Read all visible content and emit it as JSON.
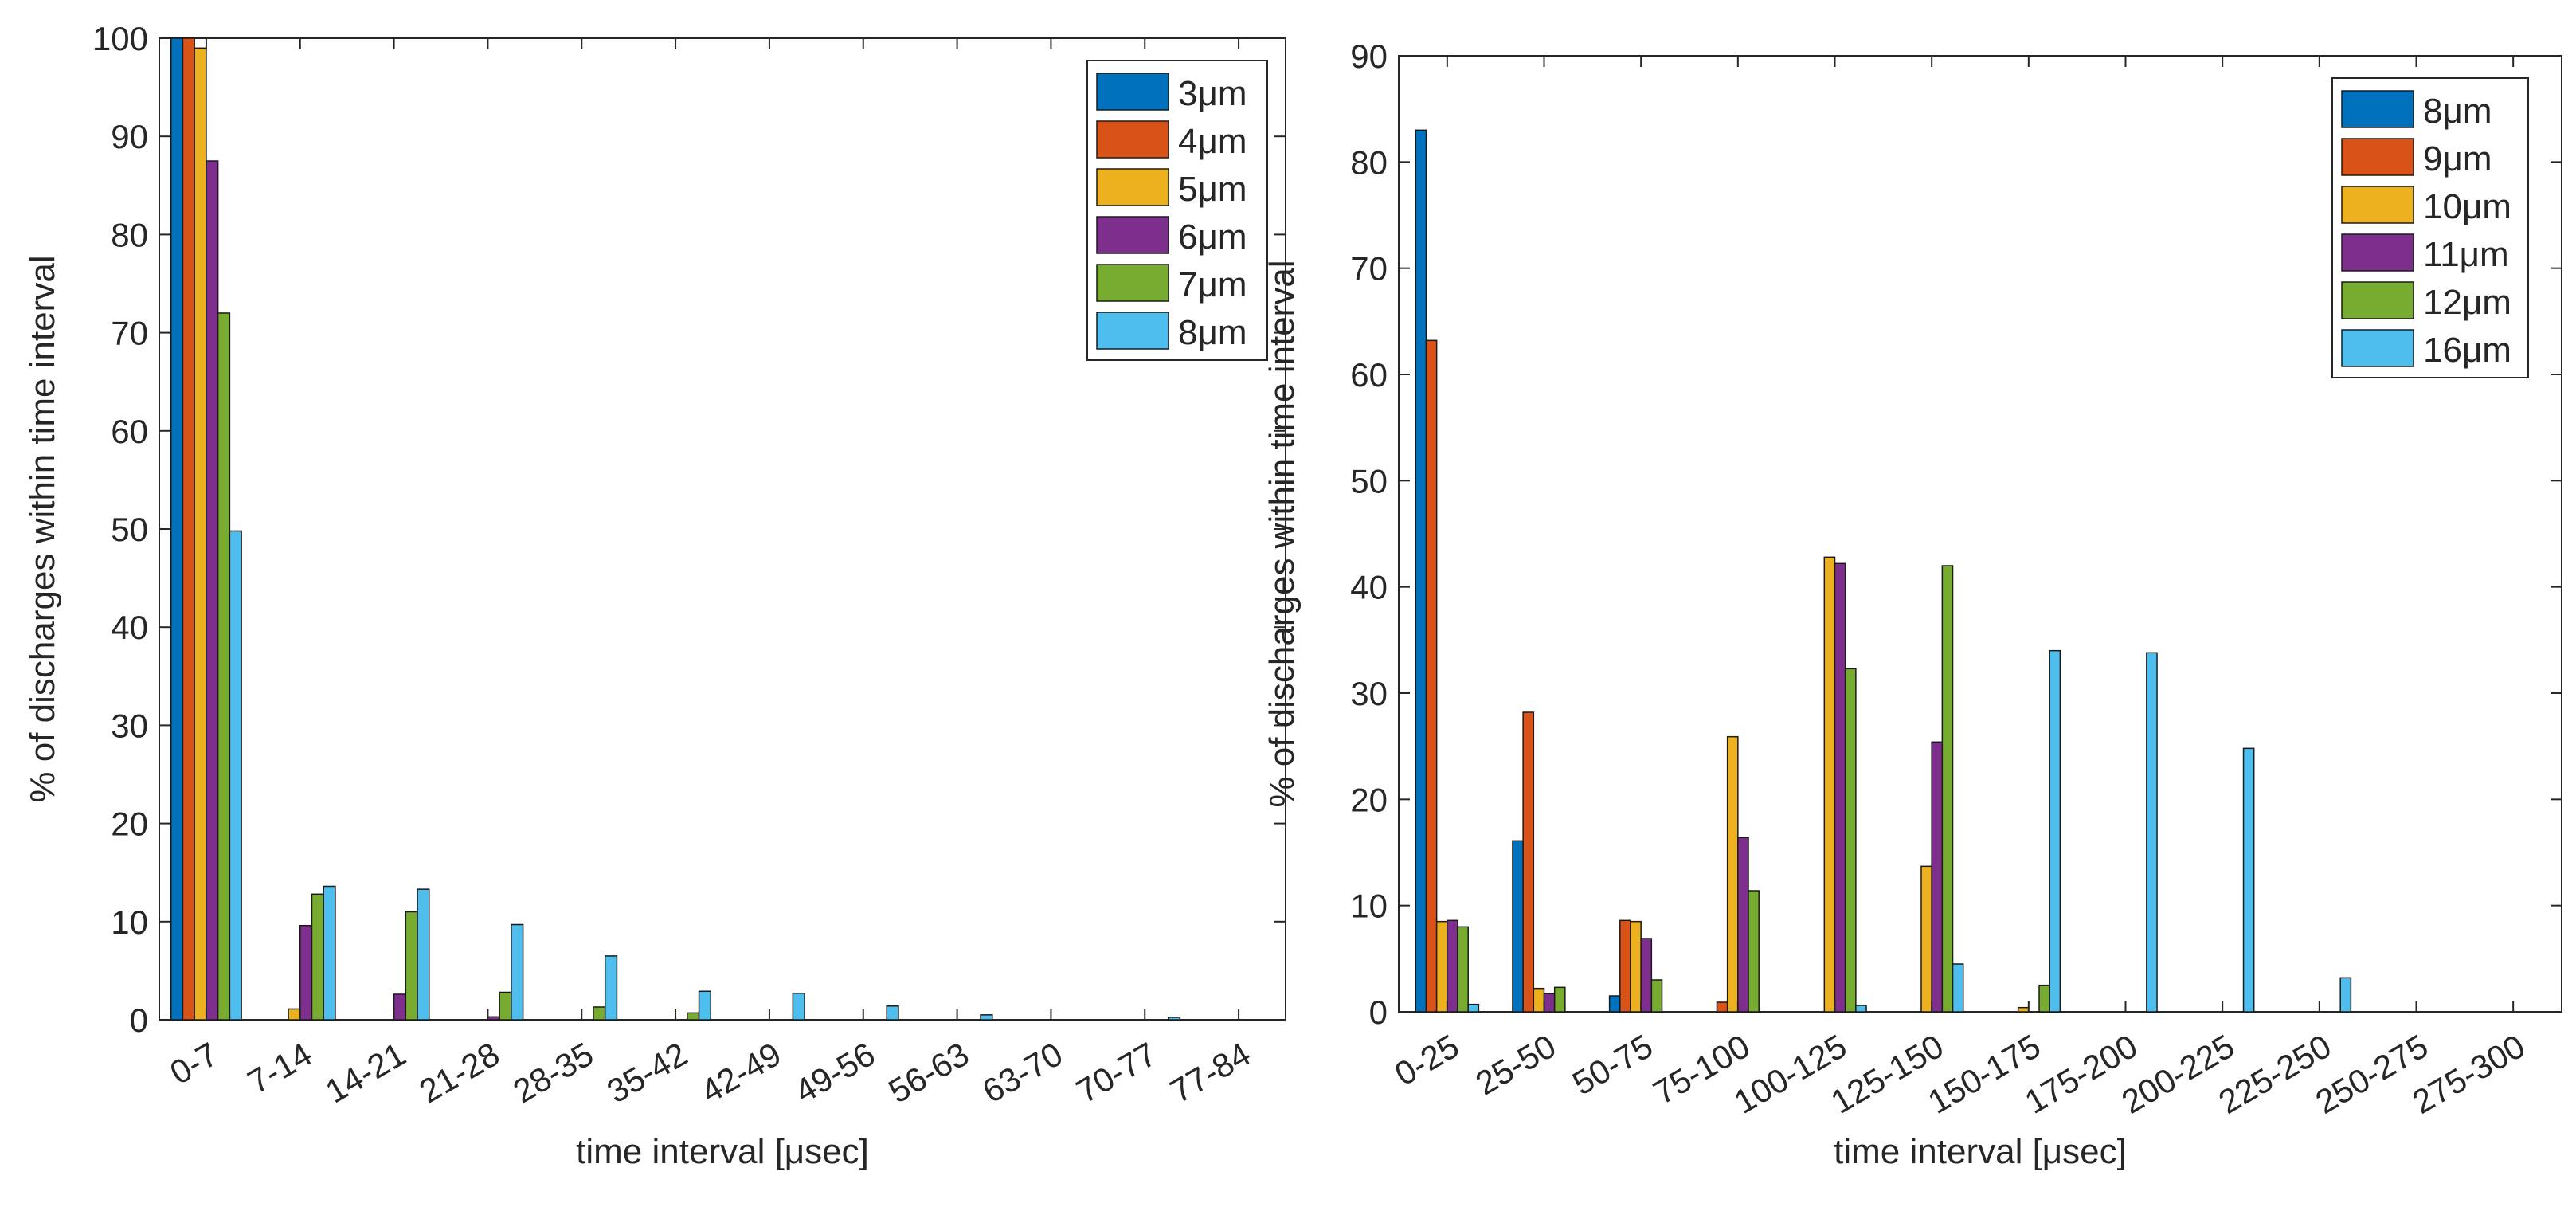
{
  "colors": [
    "#0072BD",
    "#D95319",
    "#EDB120",
    "#7E2F8E",
    "#77AC30",
    "#4DBEEE"
  ],
  "chart_data": [
    {
      "type": "bar",
      "title": "",
      "xlabel": "time interval [μsec]",
      "ylabel": "% of discharges within time interval",
      "ylim": [
        0,
        100
      ],
      "yticks": [
        0,
        10,
        20,
        30,
        40,
        50,
        60,
        70,
        80,
        90,
        100
      ],
      "grid": false,
      "legend_position": "top-right",
      "categories": [
        "0-7",
        "7-14",
        "14-21",
        "21-28",
        "28-35",
        "35-42",
        "42-49",
        "49-56",
        "56-63",
        "63-70",
        "70-77",
        "77-84"
      ],
      "series": [
        {
          "name": "3μm",
          "values": [
            100,
            0,
            0,
            0,
            0,
            0,
            0,
            0,
            0,
            0,
            0,
            0
          ]
        },
        {
          "name": "4μm",
          "values": [
            100,
            0,
            0,
            0,
            0,
            0,
            0,
            0,
            0,
            0,
            0,
            0
          ]
        },
        {
          "name": "5μm",
          "values": [
            99,
            1.1,
            0,
            0,
            0,
            0,
            0,
            0,
            0,
            0,
            0,
            0
          ]
        },
        {
          "name": "6μm",
          "values": [
            87.5,
            9.6,
            2.6,
            0.3,
            0,
            0,
            0,
            0,
            0,
            0,
            0,
            0
          ]
        },
        {
          "name": "7μm",
          "values": [
            72,
            12.8,
            11,
            2.8,
            1.3,
            0.7,
            0,
            0,
            0,
            0,
            0,
            0
          ]
        },
        {
          "name": "8μm",
          "values": [
            49.8,
            13.6,
            13.3,
            9.7,
            6.5,
            2.9,
            2.7,
            1.4,
            0.5,
            0,
            0.25,
            0
          ]
        }
      ]
    },
    {
      "type": "bar",
      "title": "",
      "xlabel": "time interval [μsec]",
      "ylabel": "% of discharges within time interval",
      "ylim": [
        0,
        90
      ],
      "yticks": [
        0,
        10,
        20,
        30,
        40,
        50,
        60,
        70,
        80,
        90
      ],
      "grid": false,
      "legend_position": "top-right",
      "categories": [
        "0-25",
        "25-50",
        "50-75",
        "75-100",
        "100-125",
        "125-150",
        "150-175",
        "175-200",
        "200-225",
        "225-250",
        "250-275",
        "275-300"
      ],
      "series": [
        {
          "name": "8μm",
          "values": [
            83,
            16.1,
            1.5,
            0,
            0,
            0,
            0,
            0,
            0,
            0,
            0,
            0
          ]
        },
        {
          "name": "9μm",
          "values": [
            63.2,
            28.2,
            8.6,
            0.9,
            0,
            0,
            0,
            0,
            0,
            0,
            0,
            0
          ]
        },
        {
          "name": "10μm",
          "values": [
            8.5,
            2.2,
            8.5,
            25.9,
            42.8,
            13.7,
            0.4,
            0,
            0,
            0,
            0,
            0
          ]
        },
        {
          "name": "11μm",
          "values": [
            8.6,
            1.7,
            6.9,
            16.4,
            42.2,
            25.4,
            0,
            0,
            0,
            0,
            0,
            0
          ]
        },
        {
          "name": "12μm",
          "values": [
            8,
            2.3,
            3,
            11.4,
            32.3,
            42,
            2.5,
            0,
            0,
            0,
            0,
            0
          ]
        },
        {
          "name": "16μm",
          "values": [
            0.7,
            0,
            0,
            0,
            0.6,
            4.5,
            34,
            33.8,
            24.8,
            3.2,
            0,
            0
          ]
        }
      ]
    }
  ]
}
